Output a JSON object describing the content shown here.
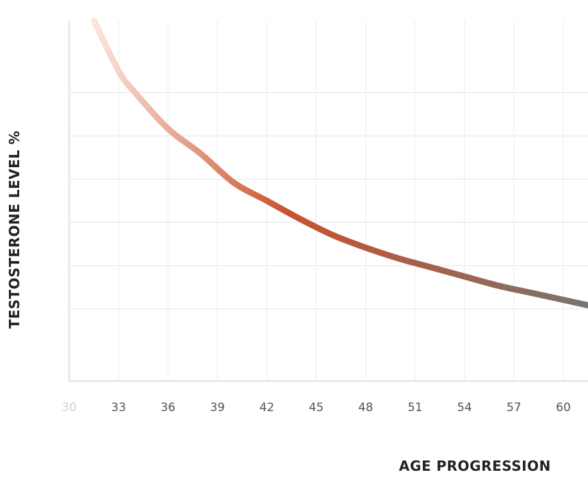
{
  "chart_data": {
    "type": "line",
    "title": "",
    "xlabel": "AGE PROGRESSION",
    "ylabel": "TESTOSTERONE LEVEL %",
    "xlim": [
      30,
      61.5
    ],
    "ylim": [
      0,
      100
    ],
    "x_ticks": [
      "30",
      "33",
      "36",
      "39",
      "42",
      "45",
      "48",
      "51",
      "54",
      "57",
      "60"
    ],
    "grid": true,
    "series": [
      {
        "x": [
          31.5,
          33,
          34,
          36,
          38,
          40,
          42,
          44,
          46,
          48,
          50,
          52,
          54,
          56,
          58,
          60,
          61.5
        ],
        "y": [
          100,
          86,
          80,
          70,
          63,
          55,
          50,
          45,
          40.5,
          37,
          34,
          31.5,
          29,
          26.5,
          24.5,
          22.5,
          21
        ],
        "gradient": [
          "#fde9e2",
          "#c9522e",
          "#797370"
        ]
      }
    ],
    "colors": {
      "grid": "#ececec",
      "tick_first": "#cfcfcf",
      "tick": "#555555",
      "axis_title": "#222222"
    }
  }
}
